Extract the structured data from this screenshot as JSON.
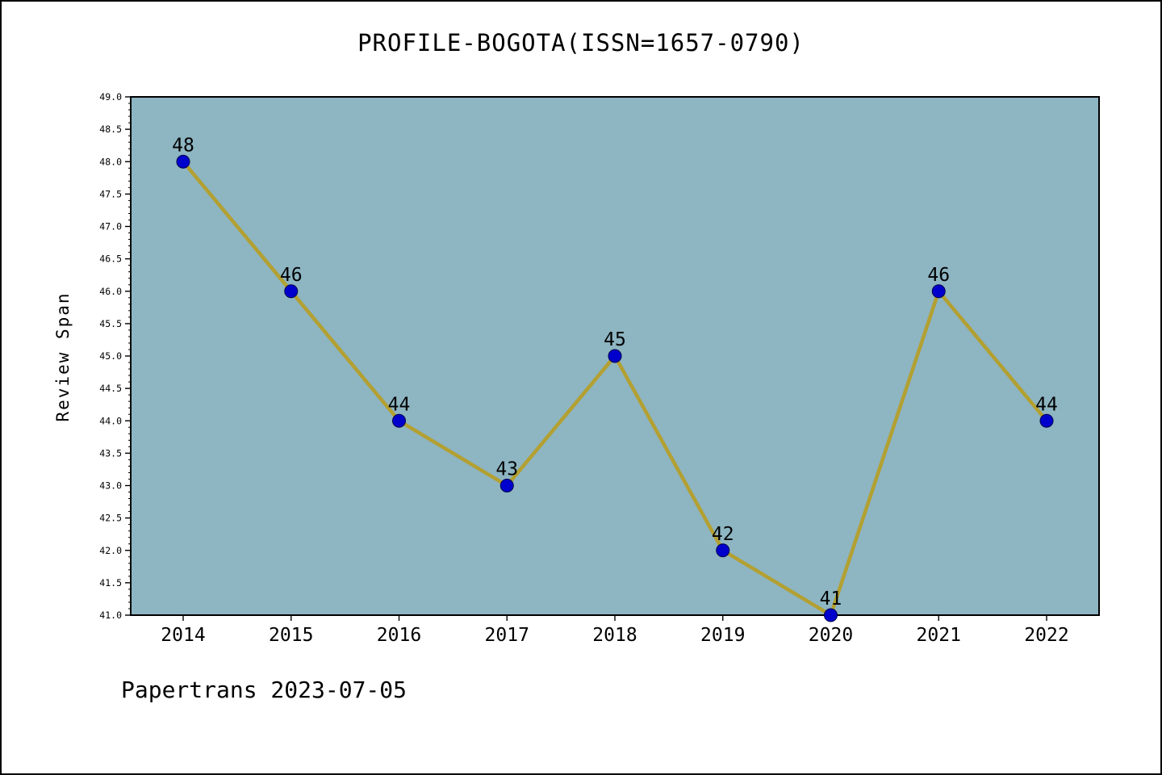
{
  "title": "PROFILE-BOGOTA(ISSN=1657-0790)",
  "footer": "Papertrans 2023-07-05",
  "chart_data": {
    "type": "line",
    "title": "PROFILE-BOGOTA(ISSN=1657-0790)",
    "xlabel": "",
    "ylabel": "Review Span",
    "x": [
      2014,
      2015,
      2016,
      2017,
      2018,
      2019,
      2020,
      2021,
      2022
    ],
    "series": [
      {
        "name": "Review Span",
        "values": [
          48,
          46,
          44,
          43,
          45,
          42,
          41,
          46,
          44
        ]
      }
    ],
    "point_labels": [
      "48",
      "46",
      "44",
      "43",
      "45",
      "42",
      "41",
      "46",
      "44"
    ],
    "ylim": [
      41.0,
      49.0
    ],
    "ytick_step": 0.5,
    "ytick_minor_step": 0.1,
    "ytick_label_format_decimals": 1,
    "grid": false,
    "legend_position": "none",
    "colors": {
      "plot_bg": "#8db5c2",
      "line": "#b3a031",
      "marker_fill": "#0000cd",
      "marker_edge": "#00004d",
      "axis": "#000000",
      "text": "#000000",
      "figure_bg": "#ffffff"
    }
  }
}
